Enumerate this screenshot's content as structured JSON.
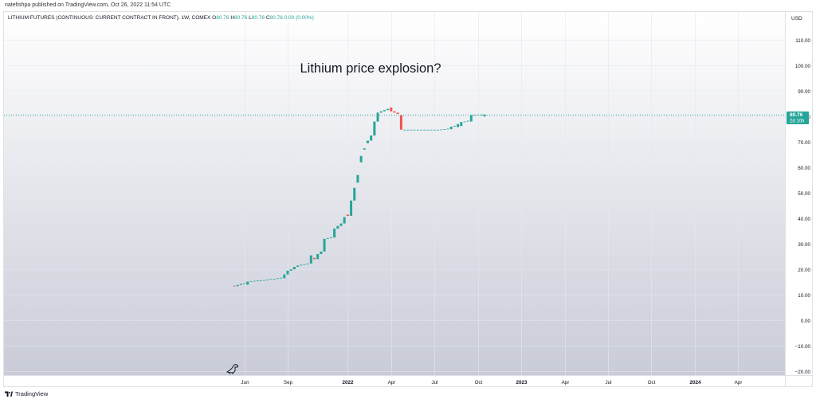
{
  "publish_line": "natefishpa published on TradingView.com, Oct 26, 2022 11:54 UTC",
  "symbol": {
    "name": "LITHIUM FUTURES (CONTINUOUS: CURRENT CONTRACT IN FRONT), 1W, COMEX",
    "o_label": "O",
    "o": "80.76",
    "h_label": "H",
    "h": "80.76",
    "l_label": "L",
    "l": "80.76",
    "c_label": "C",
    "c": "80.76",
    "change": "0.00 (0.00%)"
  },
  "footer": {
    "brand": "TradingView"
  },
  "colors": {
    "up": "#26a69a",
    "down": "#ef5350",
    "bg_top": "#ffffff",
    "bg_bottom": "#c9ccd8",
    "price_label_bg": "#26a69a"
  },
  "chart_data": {
    "type": "candlestick",
    "annotation": "Lithium price explosion?",
    "currency": "USD",
    "y_ticks": [
      "110.00",
      "100.00",
      "90.00",
      "80.00",
      "70.00",
      "60.00",
      "50.00",
      "40.00",
      "30.00",
      "20.00",
      "10.00",
      "0.00",
      "−10.00",
      "−20.00"
    ],
    "y_values": [
      110,
      100,
      90,
      80,
      70,
      60,
      50,
      40,
      30,
      20,
      10,
      0,
      -10,
      -20
    ],
    "ylim": [
      -21.5,
      121
    ],
    "x_ticks": [
      {
        "label": "Jun",
        "index": 0,
        "bold": false
      },
      {
        "label": "Sep",
        "index": 13,
        "bold": false
      },
      {
        "label": "2022",
        "index": 31,
        "bold": true
      },
      {
        "label": "Apr",
        "index": 44,
        "bold": false
      },
      {
        "label": "Jul",
        "index": 57,
        "bold": false
      },
      {
        "label": "Oct",
        "index": 70,
        "bold": false
      },
      {
        "label": "2023",
        "index": 83,
        "bold": true
      },
      {
        "label": "Apr",
        "index": 96,
        "bold": false
      },
      {
        "label": "Jul",
        "index": 109,
        "bold": false
      },
      {
        "label": "Oct",
        "index": 122,
        "bold": false
      },
      {
        "label": "2024",
        "index": 135,
        "bold": true
      },
      {
        "label": "Apr",
        "index": 148,
        "bold": false
      }
    ],
    "x_index_range": [
      -72,
      162
    ],
    "last_price": "80.76",
    "last_value": 80.76,
    "countdown": "2d 10h",
    "candles": [
      {
        "i": -3,
        "o": 13.6,
        "c": 13.4
      },
      {
        "i": -2,
        "o": 13.4,
        "c": 13.9
      },
      {
        "i": -1,
        "o": 13.9,
        "c": 14.3
      },
      {
        "i": 0,
        "o": 14.3,
        "c": 14.5
      },
      {
        "i": 1,
        "o": 14.0,
        "c": 15.2
      },
      {
        "i": 2,
        "o": 15.2,
        "c": 15.4
      },
      {
        "i": 3,
        "o": 15.4,
        "c": 15.5
      },
      {
        "i": 4,
        "o": 15.5,
        "c": 15.6
      },
      {
        "i": 5,
        "o": 15.6,
        "c": 15.7
      },
      {
        "i": 6,
        "o": 15.7,
        "c": 15.8
      },
      {
        "i": 7,
        "o": 15.8,
        "c": 16.0
      },
      {
        "i": 8,
        "o": 16.0,
        "c": 16.2
      },
      {
        "i": 9,
        "o": 16.2,
        "c": 16.3
      },
      {
        "i": 10,
        "o": 16.3,
        "c": 16.5
      },
      {
        "i": 11,
        "o": 16.5,
        "c": 16.7
      },
      {
        "i": 12,
        "o": 16.5,
        "c": 18.0
      },
      {
        "i": 13,
        "o": 18.0,
        "c": 19.5
      },
      {
        "i": 14,
        "o": 19.5,
        "c": 20.0
      },
      {
        "i": 15,
        "o": 20.0,
        "c": 21.0
      },
      {
        "i": 16,
        "o": 21.0,
        "c": 21.5
      },
      {
        "i": 17,
        "o": 21.5,
        "c": 21.8
      },
      {
        "i": 18,
        "o": 21.8,
        "c": 22.0
      },
      {
        "i": 19,
        "o": 22.0,
        "c": 22.3
      },
      {
        "i": 20,
        "o": 22.3,
        "c": 25.5
      },
      {
        "i": 21,
        "o": 24.5,
        "c": 24.0
      },
      {
        "i": 22,
        "o": 24.0,
        "c": 26.0
      },
      {
        "i": 23,
        "o": 26.0,
        "c": 27.0
      },
      {
        "i": 24,
        "o": 27.0,
        "c": 32.0
      },
      {
        "i": 25,
        "o": 32.0,
        "c": 32.3
      },
      {
        "i": 26,
        "o": 32.3,
        "c": 32.5
      },
      {
        "i": 27,
        "o": 32.5,
        "c": 36.0
      },
      {
        "i": 28,
        "o": 36.0,
        "c": 37.0
      },
      {
        "i": 29,
        "o": 37.0,
        "c": 38.0
      },
      {
        "i": 30,
        "o": 38.0,
        "c": 40.5
      },
      {
        "i": 31,
        "o": 41.5,
        "c": 41.0
      },
      {
        "i": 32,
        "o": 41.0,
        "c": 47.0
      },
      {
        "i": 33,
        "o": 47.0,
        "c": 52.0
      },
      {
        "i": 34,
        "o": 54.0,
        "c": 57.0
      },
      {
        "i": 35,
        "o": 62.0,
        "c": 64.5
      },
      {
        "i": 36,
        "o": 67.0,
        "c": 67.5
      },
      {
        "i": 37,
        "o": 69.5,
        "c": 70.5
      },
      {
        "i": 38,
        "o": 70.5,
        "c": 72.5
      },
      {
        "i": 39,
        "o": 72.5,
        "c": 78.0
      },
      {
        "i": 40,
        "o": 78.0,
        "c": 81.5
      },
      {
        "i": 41,
        "o": 81.5,
        "c": 82.0
      },
      {
        "i": 42,
        "o": 82.0,
        "c": 82.5
      },
      {
        "i": 43,
        "o": 82.5,
        "c": 83.0
      },
      {
        "i": 44,
        "o": 83.5,
        "c": 82.0
      },
      {
        "i": 45,
        "o": 82.0,
        "c": 81.5
      },
      {
        "i": 46,
        "o": 81.5,
        "c": 81.0
      },
      {
        "i": 47,
        "o": 80.5,
        "c": 74.8
      },
      {
        "i": 48,
        "o": 74.8,
        "c": 74.8
      },
      {
        "i": 49,
        "o": 74.8,
        "c": 74.8
      },
      {
        "i": 50,
        "o": 74.8,
        "c": 74.8
      },
      {
        "i": 51,
        "o": 74.8,
        "c": 74.8
      },
      {
        "i": 52,
        "o": 74.8,
        "c": 74.8
      },
      {
        "i": 53,
        "o": 74.8,
        "c": 74.8
      },
      {
        "i": 54,
        "o": 74.8,
        "c": 74.8
      },
      {
        "i": 55,
        "o": 74.8,
        "c": 74.8
      },
      {
        "i": 56,
        "o": 74.8,
        "c": 74.8
      },
      {
        "i": 57,
        "o": 74.8,
        "c": 74.8
      },
      {
        "i": 58,
        "o": 74.8,
        "c": 74.8
      },
      {
        "i": 59,
        "o": 74.8,
        "c": 74.9
      },
      {
        "i": 60,
        "o": 74.9,
        "c": 75.0
      },
      {
        "i": 61,
        "o": 75.0,
        "c": 75.2
      },
      {
        "i": 62,
        "o": 75.0,
        "c": 76.0
      },
      {
        "i": 63,
        "o": 76.0,
        "c": 76.3
      },
      {
        "i": 64,
        "o": 75.8,
        "c": 77.0
      },
      {
        "i": 65,
        "o": 76.2,
        "c": 77.8
      },
      {
        "i": 66,
        "o": 77.8,
        "c": 78.0
      },
      {
        "i": 67,
        "o": 78.0,
        "c": 78.3
      },
      {
        "i": 68,
        "o": 78.0,
        "c": 80.5
      },
      {
        "i": 69,
        "o": 80.5,
        "c": 80.6
      },
      {
        "i": 70,
        "o": 80.6,
        "c": 80.7
      },
      {
        "i": 71,
        "o": 80.7,
        "c": 80.76
      },
      {
        "i": 72,
        "o": 80.0,
        "c": 80.76
      }
    ]
  }
}
